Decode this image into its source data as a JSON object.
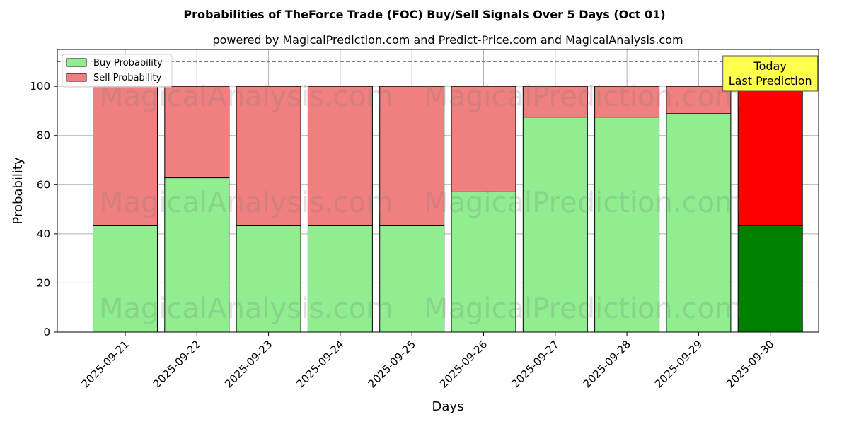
{
  "chart_data": {
    "type": "bar",
    "stacked": true,
    "title": "Probabilities of TheForce Trade (FOC) Buy/Sell Signals Over 5 Days (Oct 01)",
    "subtitle": "powered by MagicalPrediction.com and Predict-Price.com and MagicalAnalysis.com",
    "xlabel": "Days",
    "ylabel": "Probability",
    "ylim": [
      0,
      115
    ],
    "yticks": [
      0,
      20,
      40,
      60,
      80,
      100
    ],
    "grid": true,
    "legend_position": "top-left",
    "categories": [
      "2025-09-21",
      "2025-09-22",
      "2025-09-23",
      "2025-09-24",
      "2025-09-25",
      "2025-09-26",
      "2025-09-27",
      "2025-09-28",
      "2025-09-29",
      "2025-09-30"
    ],
    "series": [
      {
        "name": "Buy Probability",
        "color": "#90ee90",
        "highlight_color": "#008000",
        "values": [
          43.3,
          62.8,
          43.3,
          43.3,
          43.3,
          57.1,
          87.5,
          87.5,
          88.9,
          43.3
        ]
      },
      {
        "name": "Sell Probability",
        "color": "#f08080",
        "highlight_color": "#ff0000",
        "values": [
          56.7,
          37.2,
          56.7,
          56.7,
          56.7,
          42.9,
          12.5,
          12.5,
          11.1,
          56.7
        ]
      }
    ],
    "highlight_index": 9,
    "reference_line": {
      "y": 110,
      "style": "dashed",
      "color": "#808080"
    },
    "annotation": {
      "lines": [
        "Today",
        "Last Prediction"
      ],
      "background": "#ffff4d"
    },
    "watermarks": [
      "MagicalAnalysis.com",
      "MagicalPrediction.com"
    ]
  }
}
